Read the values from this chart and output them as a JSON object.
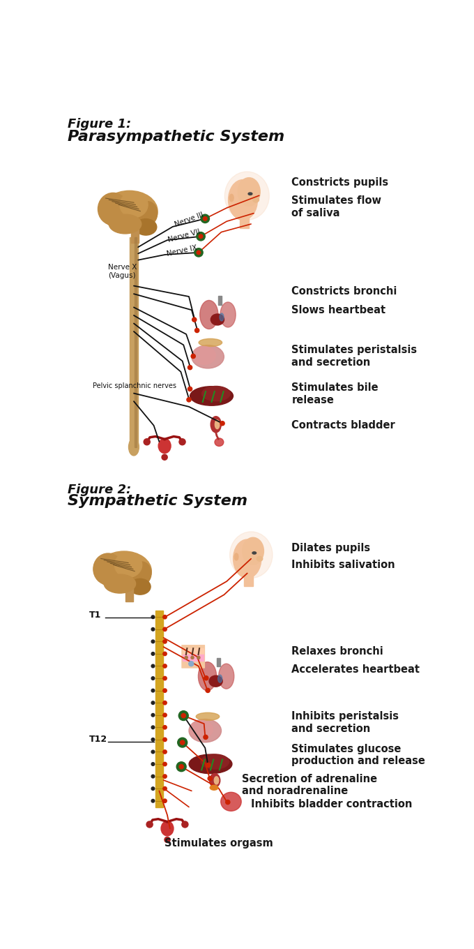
{
  "fig1_title_line1": "Figure 1:",
  "fig1_title_line2": "Parasympathetic System",
  "fig2_title_line1": "Figure 2:",
  "fig2_title_line2": "Sympathetic System",
  "fig1_labels": [
    "Constricts pupils",
    "Stimulates flow\nof saliva",
    "Constricts bronchi",
    "Slows heartbeat",
    "Stimulates peristalsis\nand secretion",
    "Stimulates bile\nrelease",
    "Contracts bladder"
  ],
  "fig2_labels": [
    "Dilates pupils",
    "Inhibits salivation",
    "Relaxes bronchi",
    "Accelerates heartbeat",
    "Inhibits peristalsis\nand secretion",
    "Stimulates glucose\nproduction and release",
    "Secretion of adrenaline\nand noradrenaline",
    "Inhibits bladder contraction",
    "Stimulates orgasm"
  ],
  "bg_color": "#ffffff",
  "text_color": "#1a1a1a",
  "label_fontsize": 10.5,
  "title1_fontsize": 13,
  "title2_fontsize": 16
}
